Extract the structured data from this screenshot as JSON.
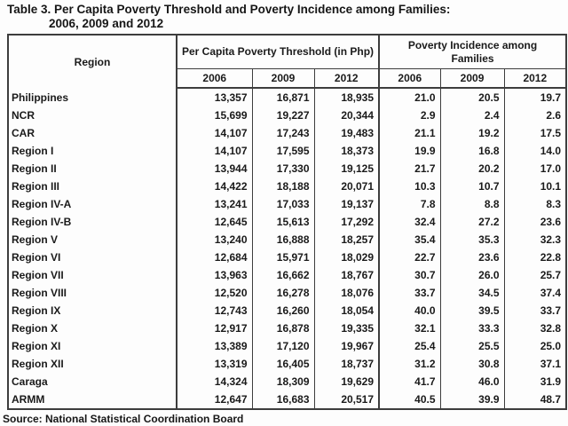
{
  "title": {
    "line1": "Table 3. Per Capita Poverty Threshold and Poverty Incidence among Families:",
    "line2": "2006, 2009 and 2012"
  },
  "table": {
    "region_header": "Region",
    "group1_header": "Per Capita Poverty Threshold (in Php)",
    "group2_header": "Poverty Incidence among Families",
    "year_headers": [
      "2006",
      "2009",
      "2012",
      "2006",
      "2009",
      "2012"
    ],
    "rows": [
      {
        "region": "Philippines",
        "values": [
          "13,357",
          "16,871",
          "18,935",
          "21.0",
          "20.5",
          "19.7"
        ]
      },
      {
        "region": "NCR",
        "values": [
          "15,699",
          "19,227",
          "20,344",
          "2.9",
          "2.4",
          "2.6"
        ]
      },
      {
        "region": "CAR",
        "values": [
          "14,107",
          "17,243",
          "19,483",
          "21.1",
          "19.2",
          "17.5"
        ]
      },
      {
        "region": "Region I",
        "values": [
          "14,107",
          "17,595",
          "18,373",
          "19.9",
          "16.8",
          "14.0"
        ]
      },
      {
        "region": "Region II",
        "values": [
          "13,944",
          "17,330",
          "19,125",
          "21.7",
          "20.2",
          "17.0"
        ]
      },
      {
        "region": "Region III",
        "values": [
          "14,422",
          "18,188",
          "20,071",
          "10.3",
          "10.7",
          "10.1"
        ]
      },
      {
        "region": "Region IV-A",
        "values": [
          "13,241",
          "17,033",
          "19,137",
          "7.8",
          "8.8",
          "8.3"
        ]
      },
      {
        "region": "Region IV-B",
        "values": [
          "12,645",
          "15,613",
          "17,292",
          "32.4",
          "27.2",
          "23.6"
        ]
      },
      {
        "region": "Region V",
        "values": [
          "13,240",
          "16,888",
          "18,257",
          "35.4",
          "35.3",
          "32.3"
        ]
      },
      {
        "region": "Region VI",
        "values": [
          "12,684",
          "15,971",
          "18,029",
          "22.7",
          "23.6",
          "22.8"
        ]
      },
      {
        "region": "Region VII",
        "values": [
          "13,963",
          "16,662",
          "18,767",
          "30.7",
          "26.0",
          "25.7"
        ]
      },
      {
        "region": "Region VIII",
        "values": [
          "12,520",
          "16,278",
          "18,076",
          "33.7",
          "34.5",
          "37.4"
        ]
      },
      {
        "region": "Region IX",
        "values": [
          "12,743",
          "16,260",
          "18,054",
          "40.0",
          "39.5",
          "33.7"
        ]
      },
      {
        "region": "Region X",
        "values": [
          "12,917",
          "16,878",
          "19,335",
          "32.1",
          "33.3",
          "32.8"
        ]
      },
      {
        "region": "Region XI",
        "values": [
          "13,389",
          "17,120",
          "19,967",
          "25.4",
          "25.5",
          "25.0"
        ]
      },
      {
        "region": "Region XII",
        "values": [
          "13,319",
          "16,405",
          "18,737",
          "31.2",
          "30.8",
          "37.1"
        ]
      },
      {
        "region": "Caraga",
        "values": [
          "14,324",
          "18,309",
          "19,629",
          "41.7",
          "46.0",
          "31.9"
        ]
      },
      {
        "region": "ARMM",
        "values": [
          "12,647",
          "16,683",
          "20,517",
          "40.5",
          "39.9",
          "48.7"
        ]
      }
    ]
  },
  "source": "Source: National Statistical Coordination Board",
  "colors": {
    "border": "#3d3d3d",
    "text": "#1a1a1a",
    "background": "#fdfdfd"
  }
}
